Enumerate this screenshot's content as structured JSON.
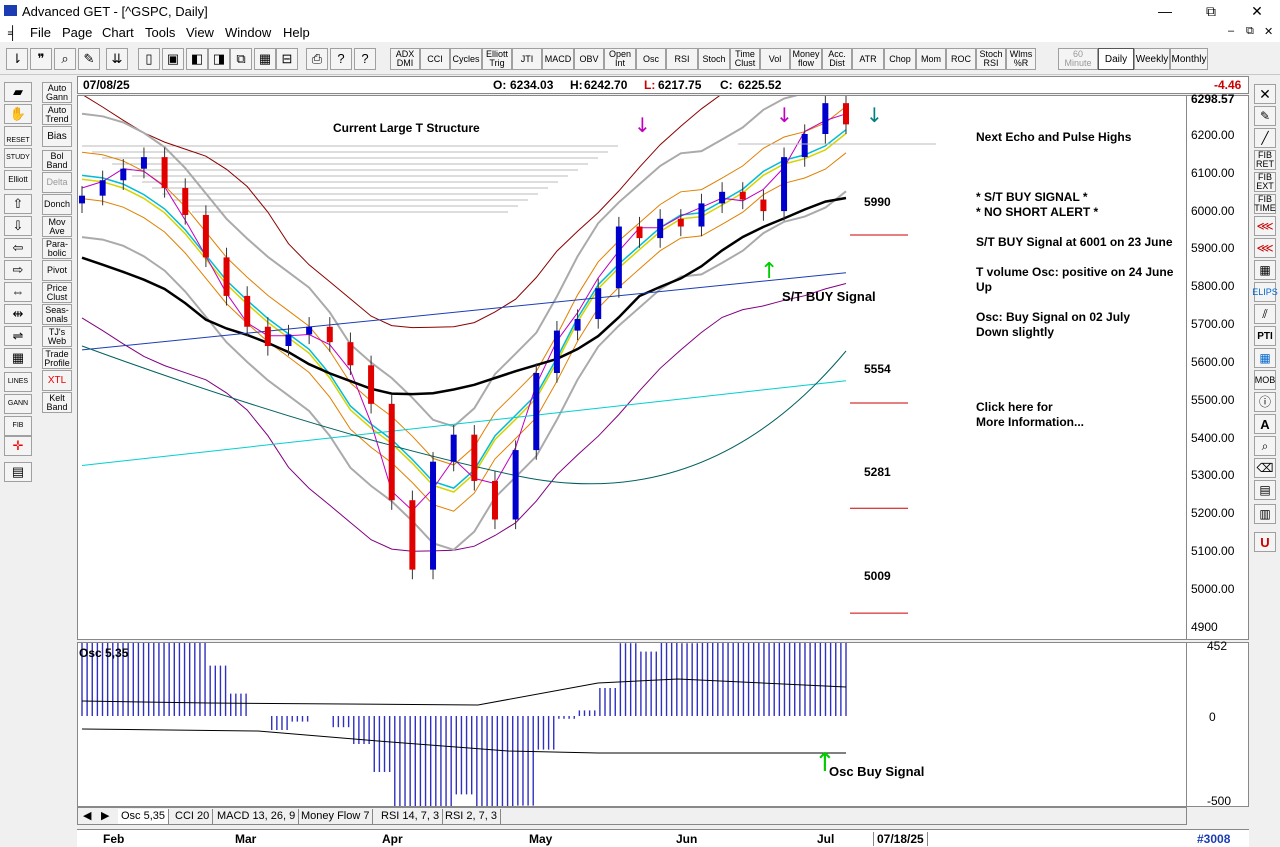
{
  "window": {
    "title": "Advanced GET - [^GSPC, Daily]",
    "minimize": "—",
    "restore": "⧉",
    "close": "✕",
    "sub_minimize": "–",
    "sub_restore": "⧉",
    "sub_close": "✕"
  },
  "menu": [
    "File",
    "Page",
    "Chart",
    "Tools",
    "View",
    "Window",
    "Help"
  ],
  "toolbar": {
    "indicators": [
      "ADX DMI",
      "CCI",
      "Cycles",
      "Elliott Trig",
      "JTI",
      "MACD",
      "OBV",
      "Open Int",
      "Osc",
      "RSI",
      "Stoch",
      "Time Clust",
      "Vol",
      "Money flow",
      "Acc. Dist",
      "ATR",
      "Chop",
      "Mom",
      "ROC",
      "Stoch RSI",
      "Wlms %R"
    ],
    "timeframes": [
      "60 Minute",
      "Daily",
      "Weekly",
      "Monthly"
    ],
    "selected_timeframe": "Daily"
  },
  "left_tools": [
    "Auto Gann",
    "Auto Trend",
    "Bias",
    "Bol Band",
    "Delta",
    "Donch",
    "Mov Ave",
    "Para-bolic",
    "Pivot",
    "Price Clust",
    "Seas-onals",
    "TJ's Web",
    "Trade Profile",
    "XTL",
    "Kelt Band"
  ],
  "left_small_labels": [
    "RESET",
    "STUDY",
    "Elliott",
    "LINES",
    "GANN",
    "FIB"
  ],
  "right_tools": [
    "FIB RET",
    "FIB EXT",
    "FIB TIME",
    "ELIPS",
    "PTI",
    "MOB"
  ],
  "infobar": {
    "date": "07/08/25",
    "open_label": "O:",
    "open": "6234.03",
    "high_label": "H:",
    "high": "6242.70",
    "low_label": "L:",
    "low": "6217.75",
    "close_label": "C:",
    "close": "6225.52",
    "change": "-4.46"
  },
  "chart": {
    "top_price": "6298.57",
    "annotations": {
      "structure": "Current Large T Structure",
      "echo": "Next Echo and Pulse Highs",
      "buy_signal_banner": "* S/T BUY SIGNAL *",
      "no_short": "* NO SHORT ALERT *",
      "st_buy_at": "S/T BUY Signal at 6001 on 23 June",
      "tvol_line1": "T volume Osc: positive on 24 June",
      "tvol_line2": "Up",
      "osc_line1": "Osc: Buy Signal on 02 July",
      "osc_line2": "Down slightly",
      "click_line1": "Click here for",
      "click_line2": "More Information...",
      "st_buy_label": "S/T BUY Signal"
    },
    "levels": [
      "5990",
      "5554",
      "5281",
      "5009"
    ]
  },
  "chart_data": {
    "type": "candlestick",
    "title": "^GSPC, Daily",
    "y_axis": {
      "ticks": [
        "6200.00",
        "6100.00",
        "6000.00",
        "5900.00",
        "5800.00",
        "5700.00",
        "5600.00",
        "5500.00",
        "5400.00",
        "5300.00",
        "5200.00",
        "5100.00",
        "5000.00",
        "4900"
      ],
      "range": [
        4890,
        6298.57
      ]
    },
    "x_axis": {
      "months": [
        "Feb",
        "Mar",
        "Apr",
        "May",
        "Jun",
        "Jul"
      ],
      "extra_date": "07/18/25"
    },
    "last_bar": {
      "date": "07/08/25",
      "open": 6234.03,
      "high": 6242.7,
      "low": 6217.75,
      "close": 6225.52,
      "change": -4.46
    },
    "close_path_approx": [
      6040,
      6080,
      6110,
      6140,
      6060,
      5990,
      5880,
      5780,
      5700,
      5650,
      5680,
      5700,
      5660,
      5600,
      5500,
      5250,
      5070,
      5350,
      5420,
      5300,
      5200,
      5380,
      5580,
      5690,
      5720,
      5800,
      5960,
      5930,
      5980,
      5960,
      6020,
      6050,
      6030,
      6000,
      6140,
      6200,
      6280,
      6225
    ],
    "support_levels": [
      5990,
      5554,
      5281,
      5009
    ],
    "oscillator": {
      "name": "Osc 5,35",
      "ticks": [
        "452",
        "0",
        "-500"
      ],
      "annotation": "Osc Buy Signal"
    }
  },
  "tabs": [
    "Osc 5,35",
    "CCI 20",
    "MACD 13, 26, 9",
    "Money Flow 7",
    "RSI 14, 7, 3",
    "RSI 2, 7, 3"
  ],
  "datebar": {
    "months": [
      "Feb",
      "Mar",
      "Apr",
      "May",
      "Jun",
      "Jul"
    ],
    "future_date": "07/18/25",
    "bar_count": "#3008"
  },
  "colors": {
    "up_candle": "#0000cc",
    "down_candle": "#e00000",
    "level_line": "#cc0000",
    "change": "#cc0000",
    "buy_arrow": "#00cc00"
  }
}
